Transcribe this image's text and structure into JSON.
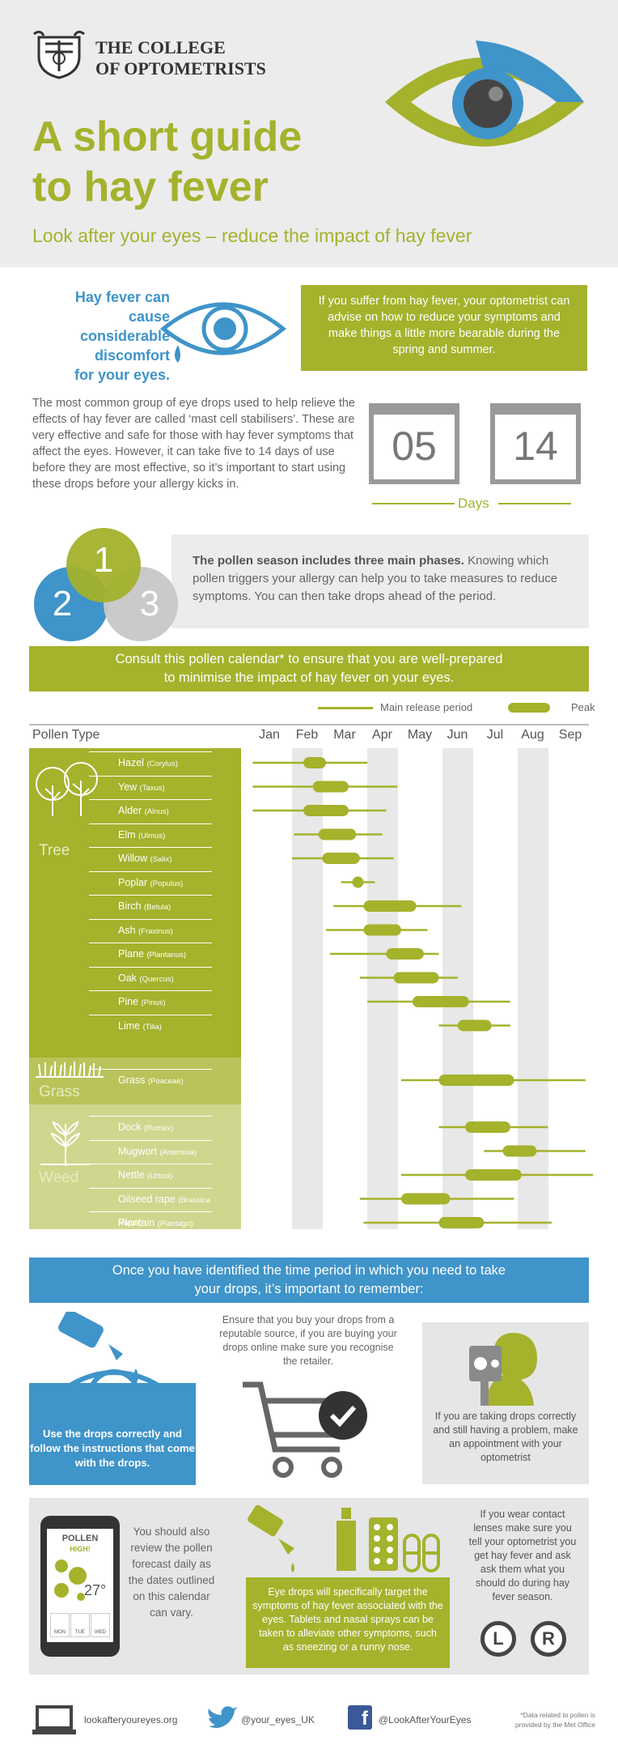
{
  "header": {
    "logo_line1": "THE COLLEGE",
    "logo_line2": "OF OPTOMETRISTS",
    "title_line1": "A short guide",
    "title_line2": "to hay fever",
    "subtitle": "Look after your eyes – reduce the impact of hay fever"
  },
  "intro": {
    "left_line1": "Hay fever can cause",
    "left_line2": "considerable",
    "left_line3": "discomfort",
    "left_line4": "for your eyes.",
    "right": "If you suffer from hay fever, your optometrist can advise on how to reduce your symptoms and make things a little more bearable during the spring and summer."
  },
  "drops": {
    "text": "The most common group of eye drops used to help relieve the effects of hay fever are called ‘mast cell stabilisers’. These are very effective and safe for those with hay fever symptoms that affect the eyes. However, it can take five to 14 days of use before they are most effective, so it’s important to start using these drops before your allergy kicks in.",
    "cal1": "05",
    "cal2": "14",
    "days_label": "Days"
  },
  "phases": {
    "c1": "1",
    "c2": "2",
    "c3": "3",
    "bold": "The pollen season includes three main phases.",
    "text": " Knowing which pollen triggers your allergy can help you to take measures to reduce symptoms. You can then take drops ahead of the period."
  },
  "calendar": {
    "banner_line1": "Consult this pollen calendar* to ensure that you are well-prepared",
    "banner_line2": "to minimise the impact of hay fever on your eyes.",
    "legend_release": "Main release period",
    "legend_peak": "Peak",
    "header": "Pollen Type",
    "months": [
      "Jan",
      "Feb",
      "Mar",
      "Apr",
      "May",
      "Jun",
      "Jul",
      "Aug",
      "Sep"
    ],
    "sections": {
      "tree": "Tree",
      "grass": "Grass",
      "weed": "Weed"
    },
    "plants": [
      {
        "name": "Hazel",
        "latin": "(Corylus)",
        "release": [
          0.05,
          3.1
        ],
        "peak": [
          1.4,
          2.0
        ]
      },
      {
        "name": "Yew",
        "latin": "(Taxus)",
        "release": [
          0.05,
          3.9
        ],
        "peak": [
          1.65,
          2.6
        ]
      },
      {
        "name": "Alder",
        "latin": "(Alnus)",
        "release": [
          0.05,
          3.6
        ],
        "peak": [
          1.4,
          2.6
        ]
      },
      {
        "name": "Elm",
        "latin": "(Ulmus)",
        "release": [
          1.15,
          3.5
        ],
        "peak": [
          1.8,
          2.8
        ]
      },
      {
        "name": "Willow",
        "latin": "(Salix)",
        "release": [
          1.1,
          3.8
        ],
        "peak": [
          1.9,
          2.9
        ]
      },
      {
        "name": "Poplar",
        "latin": "(Populus)",
        "release": [
          2.4,
          3.3
        ],
        "peak": [
          2.7,
          3.0
        ]
      },
      {
        "name": "Birch",
        "latin": "(Betula)",
        "release": [
          2.2,
          5.6
        ],
        "peak": [
          3.0,
          4.4
        ]
      },
      {
        "name": "Ash",
        "latin": "(Fraxinus)",
        "release": [
          2.0,
          4.7
        ],
        "peak": [
          3.0,
          4.0
        ]
      },
      {
        "name": "Plane",
        "latin": "(Plantanus)",
        "release": [
          2.1,
          5.0
        ],
        "peak": [
          3.6,
          4.6
        ]
      },
      {
        "name": "Oak",
        "latin": "(Quercus)",
        "release": [
          2.9,
          5.5
        ],
        "peak": [
          3.8,
          5.0
        ]
      },
      {
        "name": "Pine",
        "latin": "(Pinus)",
        "release": [
          3.1,
          6.9
        ],
        "peak": [
          4.3,
          5.8
        ]
      },
      {
        "name": "Lime",
        "latin": "(Tilia)",
        "release": [
          5.0,
          6.9
        ],
        "peak": [
          5.5,
          6.4
        ]
      },
      {
        "name": "Grass",
        "latin": "(Poaceae)",
        "release": [
          4.0,
          8.9
        ],
        "peak": [
          5.0,
          7.0
        ]
      },
      {
        "name": "Dock",
        "latin": "(Rumex)",
        "release": [
          5.0,
          7.9
        ],
        "peak": [
          5.7,
          6.9
        ]
      },
      {
        "name": "Mugwort",
        "latin": "(Artemisia)",
        "release": [
          6.2,
          8.9
        ],
        "peak": [
          6.7,
          7.6
        ]
      },
      {
        "name": "Nettle",
        "latin": "(Urtica)",
        "release": [
          4.0,
          9.1
        ],
        "peak": [
          5.7,
          7.2
        ]
      },
      {
        "name": "Oilseed rape",
        "latin": "(Brassica Napus)",
        "release": [
          2.9,
          7.0
        ],
        "peak": [
          4.0,
          5.3
        ]
      },
      {
        "name": "Plantain",
        "latin": "(Plantago)",
        "release": [
          3.0,
          8.0
        ],
        "peak": [
          5.0,
          6.2
        ]
      }
    ]
  },
  "remember": {
    "banner_line1": "Once you have identified the time period in which you need to take",
    "banner_line2": "your drops, it’s important to remember:",
    "card1": "Use the drops correctly and follow the instructions that come with the drops.",
    "card2": "Ensure that you buy your drops from a reputable source, if you are buying your drops online make sure you recognise the retailer.",
    "card3": "If you are taking drops correctly and still having a problem, make an appointment with your optometrist"
  },
  "bottom": {
    "phone_title": "POLLEN",
    "phone_level": "HIGH!",
    "phone_temp": "27°",
    "phone_days": [
      "MON",
      "TUE",
      "WED"
    ],
    "forecast": "You should also review the pollen forecast daily as the dates outlined on this calendar can vary.",
    "drops_card": "Eye drops will specifically target the symptoms of hay fever associated with the eyes. Tablets and nasal sprays can be taken to alleviate other symptoms, such as sneezing or a runny nose.",
    "lens_text": "If you wear contact lenses make sure you tell your optometrist you get hay fever and ask ask them what you should do during hay fever season.",
    "lens_l": "L",
    "lens_r": "R"
  },
  "footer": {
    "website": "lookafteryoureyes.org",
    "twitter": "@your_eyes_UK",
    "facebook": "@LookAfterYourEyes",
    "note": "*Data related to pollen is provided by the Met Office"
  },
  "colors": {
    "green": "#a4b22c",
    "blue": "#3f94c9",
    "grey": "#c8c8c8"
  }
}
